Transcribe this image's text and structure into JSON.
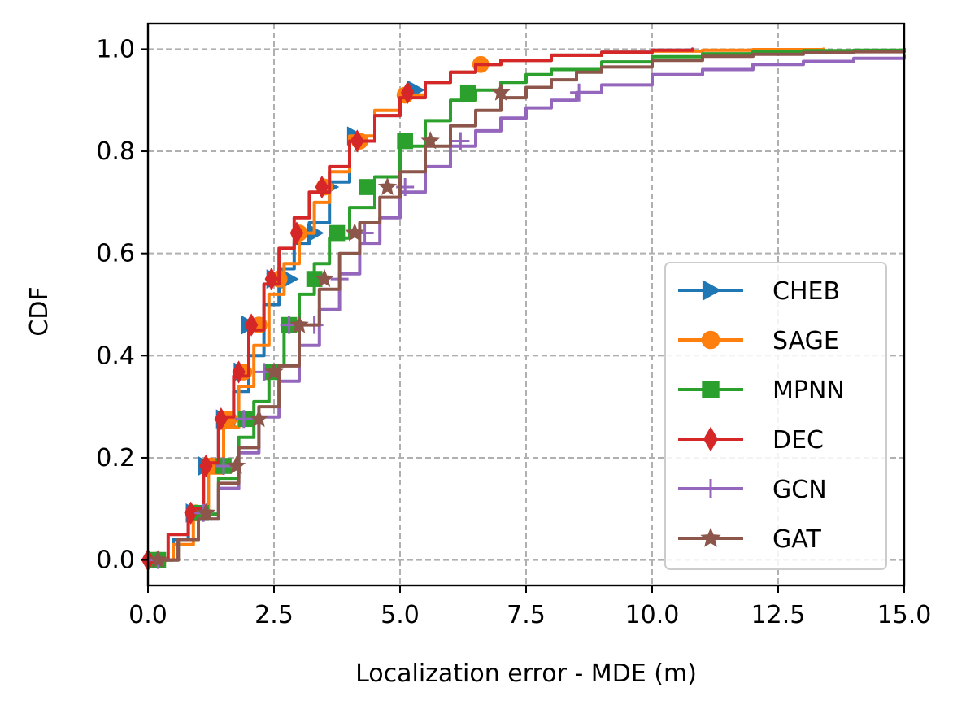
{
  "chart_data": {
    "type": "line",
    "title": "",
    "xlabel": "Localization error - MDE (m)",
    "ylabel": "CDF",
    "xlim": [
      0,
      15
    ],
    "ylim": [
      -0.05,
      1.05
    ],
    "xticks": [
      0,
      2.5,
      5,
      7.5,
      10,
      12.5,
      15
    ],
    "xtick_labels": [
      "0.0",
      "2.5",
      "5.0",
      "7.5",
      "10.0",
      "12.5",
      "15.0"
    ],
    "yticks": [
      0,
      0.2,
      0.4,
      0.6,
      0.8,
      1.0
    ],
    "ytick_labels": [
      "0.0",
      "0.2",
      "0.4",
      "0.6",
      "0.8",
      "1.0"
    ],
    "grid": true,
    "legend_position": "lower-right",
    "series": [
      {
        "name": "CHEB",
        "color": "#1f77b4",
        "marker": "triangle-right",
        "x": [
          0.15,
          0.5,
          0.8,
          1.1,
          1.4,
          1.7,
          2.0,
          2.3,
          2.6,
          2.9,
          3.2,
          3.6,
          4.0,
          4.5,
          5.0,
          5.5,
          6.0,
          6.5,
          7.0,
          8.0,
          9.0,
          10.0,
          10.8
        ],
        "y": [
          0.0,
          0.04,
          0.1,
          0.18,
          0.26,
          0.33,
          0.4,
          0.5,
          0.57,
          0.62,
          0.66,
          0.74,
          0.82,
          0.87,
          0.91,
          0.935,
          0.955,
          0.97,
          0.978,
          0.988,
          0.994,
          0.998,
          1.0
        ],
        "marker_x": [
          0.9,
          1.15,
          1.5,
          1.85,
          2.0,
          2.5,
          2.8,
          3.3,
          3.6,
          4.1,
          5.3
        ],
        "marker_y": [
          0.092,
          0.184,
          0.276,
          0.368,
          0.46,
          0.55,
          0.55,
          0.64,
          0.73,
          0.83,
          0.92
        ]
      },
      {
        "name": "SAGE",
        "color": "#ff7f0e",
        "marker": "circle",
        "x": [
          0.2,
          0.5,
          0.9,
          1.2,
          1.5,
          1.8,
          2.1,
          2.4,
          2.7,
          3.0,
          3.3,
          3.6,
          4.0,
          4.5,
          5.0,
          5.5,
          6.0,
          6.5,
          7.0,
          8.0,
          9.0,
          10.0,
          11.0,
          12.0,
          13.4
        ],
        "y": [
          0.0,
          0.03,
          0.09,
          0.17,
          0.26,
          0.34,
          0.42,
          0.52,
          0.58,
          0.64,
          0.7,
          0.76,
          0.83,
          0.88,
          0.91,
          0.935,
          0.955,
          0.97,
          0.978,
          0.988,
          0.993,
          0.996,
          0.998,
          0.999,
          1.0
        ],
        "marker_x": [
          0.2,
          0.95,
          1.25,
          1.6,
          1.9,
          2.2,
          2.6,
          3.0,
          3.5,
          4.2,
          5.1,
          6.6
        ],
        "marker_y": [
          0.0,
          0.092,
          0.184,
          0.276,
          0.368,
          0.46,
          0.55,
          0.64,
          0.73,
          0.82,
          0.91,
          0.97
        ]
      },
      {
        "name": "MPNN",
        "color": "#2ca02c",
        "marker": "square",
        "x": [
          0.2,
          0.6,
          1.0,
          1.4,
          1.8,
          2.1,
          2.4,
          2.7,
          3.0,
          3.3,
          3.6,
          4.0,
          4.5,
          5.0,
          5.5,
          6.0,
          6.5,
          7.0,
          7.5,
          8.0,
          9.0,
          10.0,
          11.0,
          12.0,
          13.0,
          14.0,
          15.0
        ],
        "y": [
          0.0,
          0.04,
          0.09,
          0.16,
          0.24,
          0.31,
          0.38,
          0.45,
          0.52,
          0.58,
          0.63,
          0.69,
          0.75,
          0.81,
          0.86,
          0.9,
          0.92,
          0.935,
          0.95,
          0.96,
          0.975,
          0.985,
          0.991,
          0.995,
          0.997,
          0.998,
          1.0
        ],
        "marker_x": [
          0.2,
          1.05,
          1.5,
          1.95,
          2.45,
          2.8,
          3.3,
          3.75,
          4.35,
          5.1,
          6.35
        ],
        "marker_y": [
          0.0,
          0.092,
          0.184,
          0.276,
          0.368,
          0.46,
          0.55,
          0.64,
          0.73,
          0.82,
          0.915
        ]
      },
      {
        "name": "DEC",
        "color": "#d62728",
        "marker": "thin-diamond",
        "x": [
          0.0,
          0.4,
          0.8,
          1.1,
          1.4,
          1.7,
          2.0,
          2.3,
          2.6,
          2.9,
          3.2,
          3.6,
          4.0,
          4.5,
          5.0,
          5.5,
          6.0,
          6.5,
          7.0,
          8.0,
          9.0,
          10.0,
          10.8
        ],
        "y": [
          0.0,
          0.05,
          0.1,
          0.19,
          0.28,
          0.36,
          0.45,
          0.54,
          0.61,
          0.67,
          0.72,
          0.77,
          0.82,
          0.87,
          0.905,
          0.935,
          0.955,
          0.97,
          0.978,
          0.988,
          0.994,
          0.998,
          1.0
        ],
        "marker_x": [
          0.0,
          0.85,
          1.15,
          1.45,
          1.8,
          2.05,
          2.45,
          2.95,
          3.45,
          4.15,
          5.15
        ],
        "marker_y": [
          0.0,
          0.092,
          0.184,
          0.276,
          0.368,
          0.46,
          0.55,
          0.64,
          0.73,
          0.82,
          0.915
        ]
      },
      {
        "name": "GCN",
        "color": "#9467bd",
        "marker": "plus",
        "x": [
          0.2,
          0.6,
          1.0,
          1.4,
          1.8,
          2.2,
          2.6,
          3.0,
          3.4,
          3.8,
          4.2,
          4.6,
          5.0,
          5.5,
          6.0,
          6.5,
          7.0,
          7.5,
          8.0,
          8.5,
          9.0,
          10.0,
          11.0,
          12.0,
          13.0,
          14.0,
          15.0
        ],
        "y": [
          0.0,
          0.04,
          0.08,
          0.14,
          0.21,
          0.28,
          0.35,
          0.42,
          0.49,
          0.56,
          0.62,
          0.67,
          0.72,
          0.77,
          0.81,
          0.84,
          0.865,
          0.885,
          0.9,
          0.915,
          0.93,
          0.95,
          0.96,
          0.97,
          0.976,
          0.982,
          0.987
        ],
        "marker_x": [
          0.2,
          1.1,
          1.5,
          1.9,
          2.3,
          2.8,
          3.3,
          3.8,
          4.3,
          5.1,
          6.2,
          8.55
        ],
        "marker_y": [
          0.0,
          0.092,
          0.184,
          0.276,
          0.368,
          0.46,
          0.46,
          0.55,
          0.64,
          0.73,
          0.82,
          0.915
        ]
      },
      {
        "name": "GAT",
        "color": "#8c564b",
        "marker": "star",
        "x": [
          0.2,
          0.6,
          1.0,
          1.4,
          1.8,
          2.2,
          2.6,
          3.0,
          3.4,
          3.8,
          4.2,
          4.6,
          5.0,
          5.5,
          6.0,
          6.5,
          7.0,
          7.5,
          8.0,
          8.5,
          9.0,
          10.0,
          11.0,
          12.0,
          13.0,
          14.0,
          15.0
        ],
        "y": [
          0.0,
          0.04,
          0.08,
          0.15,
          0.22,
          0.3,
          0.38,
          0.46,
          0.53,
          0.6,
          0.66,
          0.71,
          0.76,
          0.81,
          0.85,
          0.88,
          0.905,
          0.925,
          0.94,
          0.955,
          0.965,
          0.978,
          0.986,
          0.99,
          0.993,
          0.995,
          0.997
        ],
        "marker_x": [
          0.2,
          1.15,
          1.75,
          2.2,
          2.5,
          3.0,
          3.5,
          4.1,
          4.75,
          5.6,
          7.0
        ],
        "marker_y": [
          0.0,
          0.092,
          0.184,
          0.276,
          0.368,
          0.46,
          0.55,
          0.64,
          0.73,
          0.82,
          0.915
        ]
      }
    ]
  }
}
